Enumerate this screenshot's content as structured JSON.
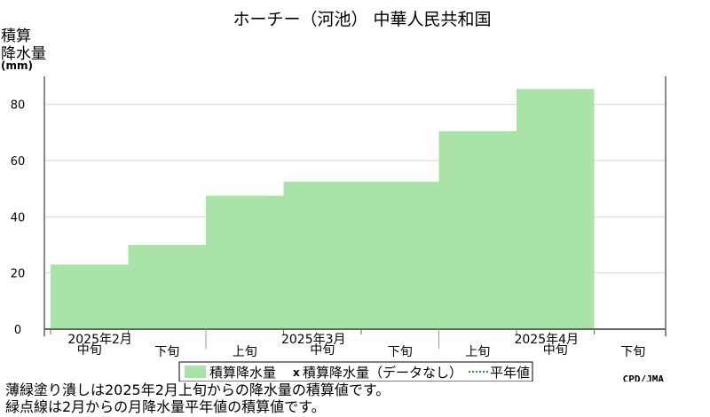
{
  "chart_data": {
    "type": "area",
    "title": "ホーチー（河池） 中華人民共和国",
    "ylabel_lines": [
      "積算",
      "降水量",
      "(mm)"
    ],
    "ylim": [
      0,
      90
    ],
    "yticks": [
      0,
      20,
      40,
      60,
      80
    ],
    "grid": true,
    "periods": [
      {
        "month": "2025年2月",
        "dekad": "中旬",
        "value": 23
      },
      {
        "month": "2025年2月",
        "dekad": "下旬",
        "value": 30
      },
      {
        "month": "2025年3月",
        "dekad": "上旬",
        "value": 47.5
      },
      {
        "month": "2025年3月",
        "dekad": "中旬",
        "value": 52.5
      },
      {
        "month": "2025年3月",
        "dekad": "下旬",
        "value": 52.5
      },
      {
        "month": "2025年4月",
        "dekad": "上旬",
        "value": 70.5
      },
      {
        "month": "2025年4月",
        "dekad": "中旬",
        "value": 85.5
      },
      {
        "month": "2025年4月",
        "dekad": "下旬",
        "value": null
      }
    ],
    "months": [
      "2025年2月",
      "2025年3月",
      "2025年4月"
    ],
    "series": [
      {
        "name": "積算降水量",
        "color": "#aae3a8",
        "style": "filled"
      },
      {
        "name": "積算降水量（データなし）",
        "marker": "x"
      },
      {
        "name": "平年値",
        "style": "dotted-green"
      }
    ],
    "legend_placement": "bottom-center",
    "credit": "CPD/JMA"
  },
  "notes": [
    "薄緑塗り潰しは2025年2月上旬からの降水量の積算値です。",
    "緑点線は2月からの月降水量平年値の積算値です。"
  ]
}
